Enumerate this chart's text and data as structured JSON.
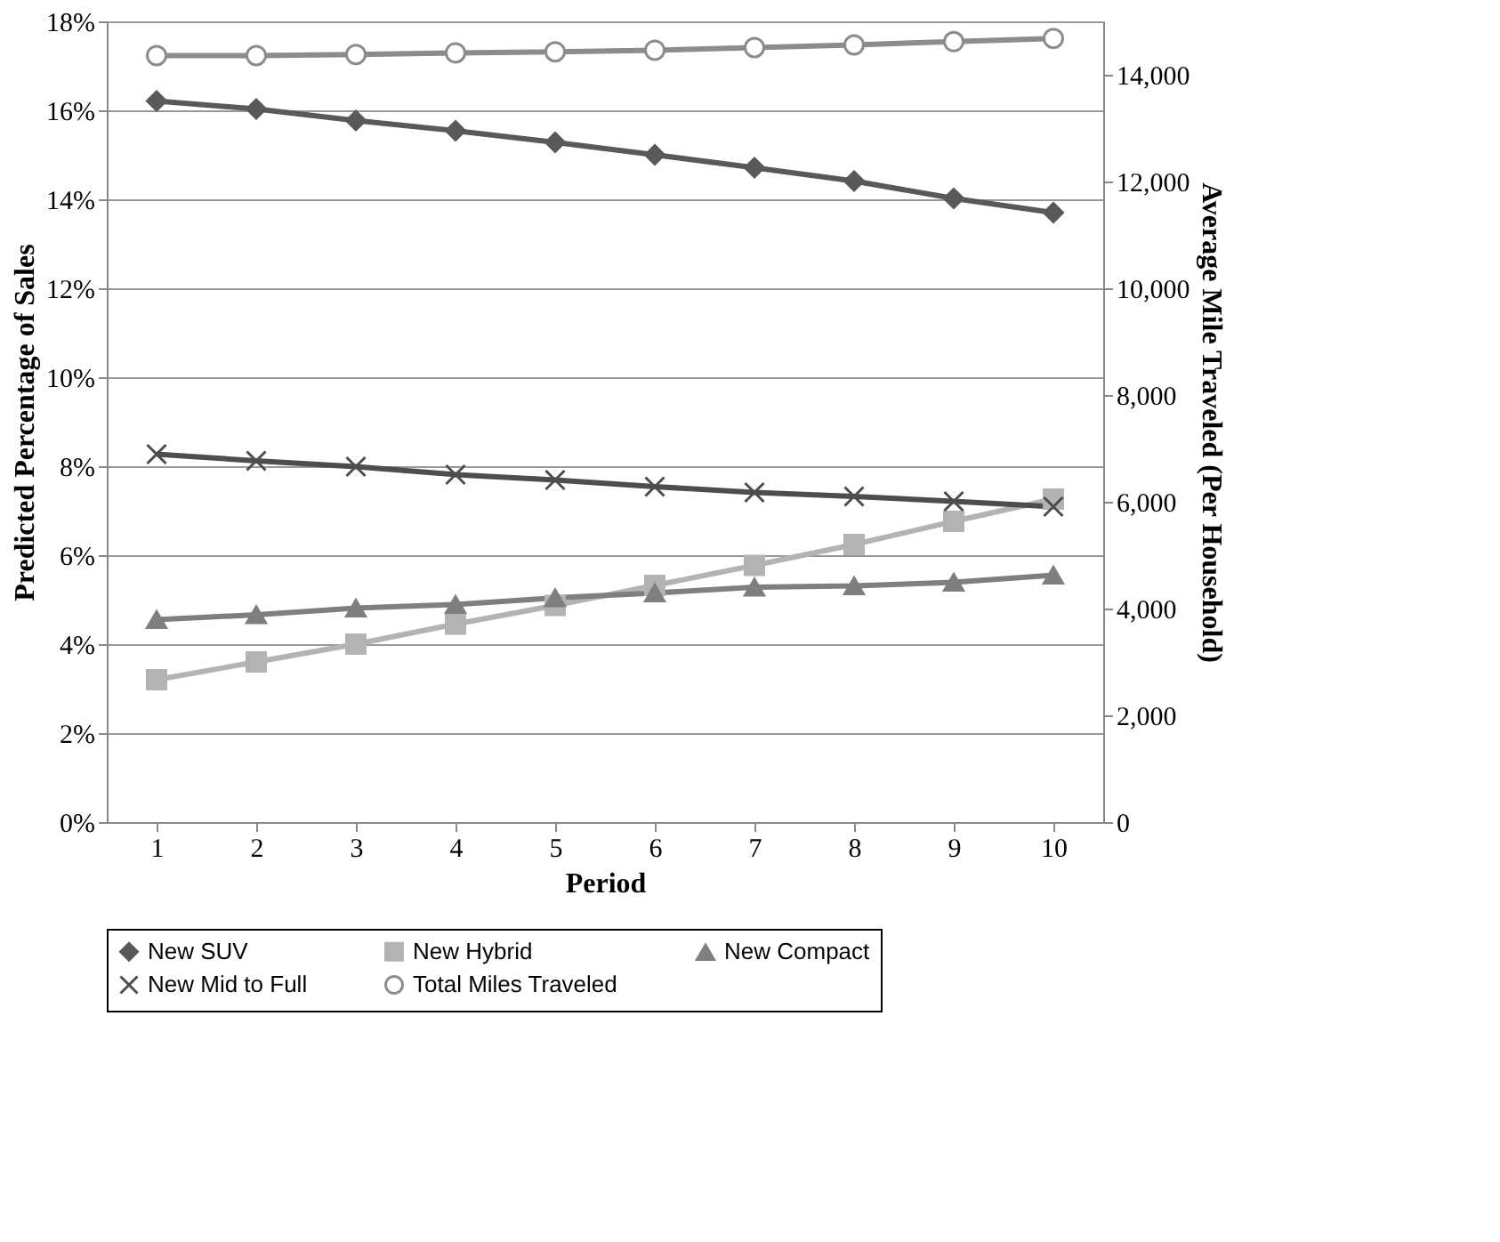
{
  "chart_data": {
    "type": "line",
    "xlabel": "Period",
    "ylabel": "Predicted Percentage of Sales",
    "y2label": "Average Mile Traveled (Per Household)",
    "categories": [
      "1",
      "2",
      "3",
      "4",
      "5",
      "6",
      "7",
      "8",
      "9",
      "10"
    ],
    "series": [
      {
        "name": "New SUV",
        "color": "#595959",
        "marker": "diamond",
        "values": [
          16.21,
          16.03,
          15.77,
          15.54,
          15.28,
          15.0,
          14.71,
          14.41,
          14.02,
          13.7
        ]
      },
      {
        "name": "New Hybrid",
        "color": "#b3b3b3",
        "marker": "square",
        "values": [
          3.2,
          3.6,
          4.0,
          4.45,
          4.87,
          5.32,
          5.77,
          6.24,
          6.76,
          7.26
        ]
      },
      {
        "name": "New Compact",
        "color": "#7f7f7f",
        "marker": "triangle",
        "values": [
          4.55,
          4.66,
          4.81,
          4.89,
          5.04,
          5.15,
          5.28,
          5.31,
          5.39,
          5.55
        ]
      },
      {
        "name": "New Mid to Full",
        "color": "#4d4d4d",
        "marker": "cross",
        "values": [
          8.27,
          8.12,
          7.99,
          7.81,
          7.69,
          7.54,
          7.41,
          7.32,
          7.21,
          7.09
        ]
      },
      {
        "name": "Total Miles Traveled",
        "color": "#8c8c8c",
        "marker": "circle",
        "axis": "y2",
        "values": [
          14360,
          14360,
          14380,
          14410,
          14430,
          14460,
          14510,
          14560,
          14620,
          14680
        ]
      }
    ],
    "ylim": [
      0,
      18
    ],
    "yticks": [
      {
        "value": 0,
        "label": "0%"
      },
      {
        "value": 2,
        "label": "2%"
      },
      {
        "value": 4,
        "label": "4%"
      },
      {
        "value": 6,
        "label": "6%"
      },
      {
        "value": 8,
        "label": "8%"
      },
      {
        "value": 10,
        "label": "10%"
      },
      {
        "value": 12,
        "label": "12%"
      },
      {
        "value": 14,
        "label": "14%"
      },
      {
        "value": 16,
        "label": "16%"
      },
      {
        "value": 18,
        "label": "18%"
      }
    ],
    "y2lim": [
      0,
      15000
    ],
    "y2ticks": [
      {
        "value": 0,
        "label": "0"
      },
      {
        "value": 2000,
        "label": "2,000"
      },
      {
        "value": 4000,
        "label": "4,000"
      },
      {
        "value": 6000,
        "label": "6,000"
      },
      {
        "value": 8000,
        "label": "8,000"
      },
      {
        "value": 10000,
        "label": "10,000"
      },
      {
        "value": 12000,
        "label": "12,000"
      },
      {
        "value": 14000,
        "label": "14,000"
      }
    ],
    "grid": "y",
    "legend": "bottom",
    "line_style": "solid"
  }
}
